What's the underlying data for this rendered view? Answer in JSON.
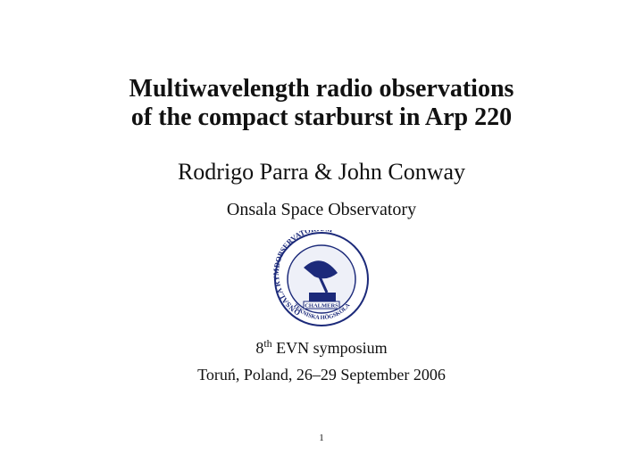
{
  "title": {
    "lines": [
      "Multiwavelength radio observations",
      "of the compact starburst in Arp 220"
    ]
  },
  "authors": "Rodrigo Parra & John Conway",
  "affiliation": "Onsala Space Observatory",
  "logo": {
    "ring_text": "ONSALA RYMDOBSERVATORIUM",
    "inner_text": "CHALMERS",
    "bottom_text": "TEKNISKA HÖGSKOLA"
  },
  "event": {
    "ordinal": "8",
    "ordinal_suffix": "th",
    "name": "EVN symposium"
  },
  "location": "Toruń, Poland, 26–29 September 2006",
  "page_number": "1"
}
